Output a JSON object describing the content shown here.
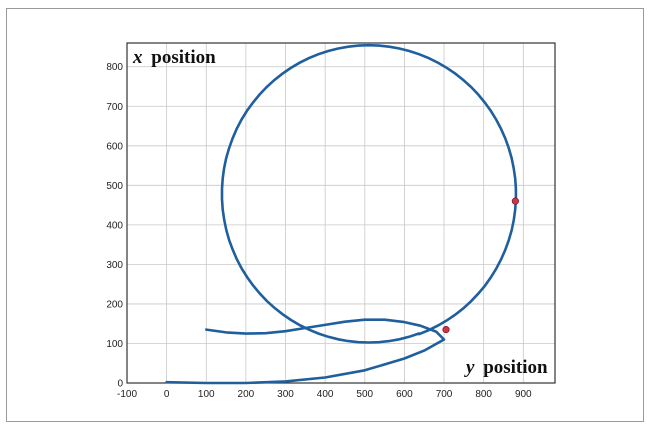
{
  "chart_data": {
    "type": "line",
    "title": "",
    "xlabel_var": "y",
    "xlabel_word": "position",
    "ylabel_var": "x",
    "ylabel_word": "position",
    "xlim": [
      -100,
      980
    ],
    "ylim": [
      0,
      860
    ],
    "xticks": [
      -100,
      0,
      100,
      200,
      300,
      400,
      500,
      600,
      700,
      800,
      900
    ],
    "yticks": [
      0,
      100,
      200,
      300,
      400,
      500,
      600,
      700,
      800
    ],
    "grid": true,
    "series": [
      {
        "color": "#1f5f9e",
        "points": [
          [
            0,
            2
          ],
          [
            100,
            0
          ],
          [
            200,
            0
          ],
          [
            300,
            4
          ],
          [
            400,
            14
          ],
          [
            500,
            32
          ],
          [
            600,
            62
          ],
          [
            650,
            82
          ],
          [
            700,
            110
          ],
          [
            680,
            130
          ],
          [
            640,
            145
          ],
          [
            600,
            154
          ],
          [
            550,
            160
          ],
          [
            500,
            160
          ],
          [
            450,
            155
          ],
          [
            400,
            147
          ],
          [
            350,
            139
          ],
          [
            300,
            131
          ],
          [
            250,
            126
          ],
          [
            200,
            125
          ],
          [
            150,
            128
          ],
          [
            100,
            135
          ]
        ]
      }
    ],
    "markers": [
      {
        "x": 705,
        "y": 135,
        "color": "#d6304a"
      },
      {
        "x": 880,
        "y": 460,
        "color": "#d6304a"
      }
    ]
  }
}
